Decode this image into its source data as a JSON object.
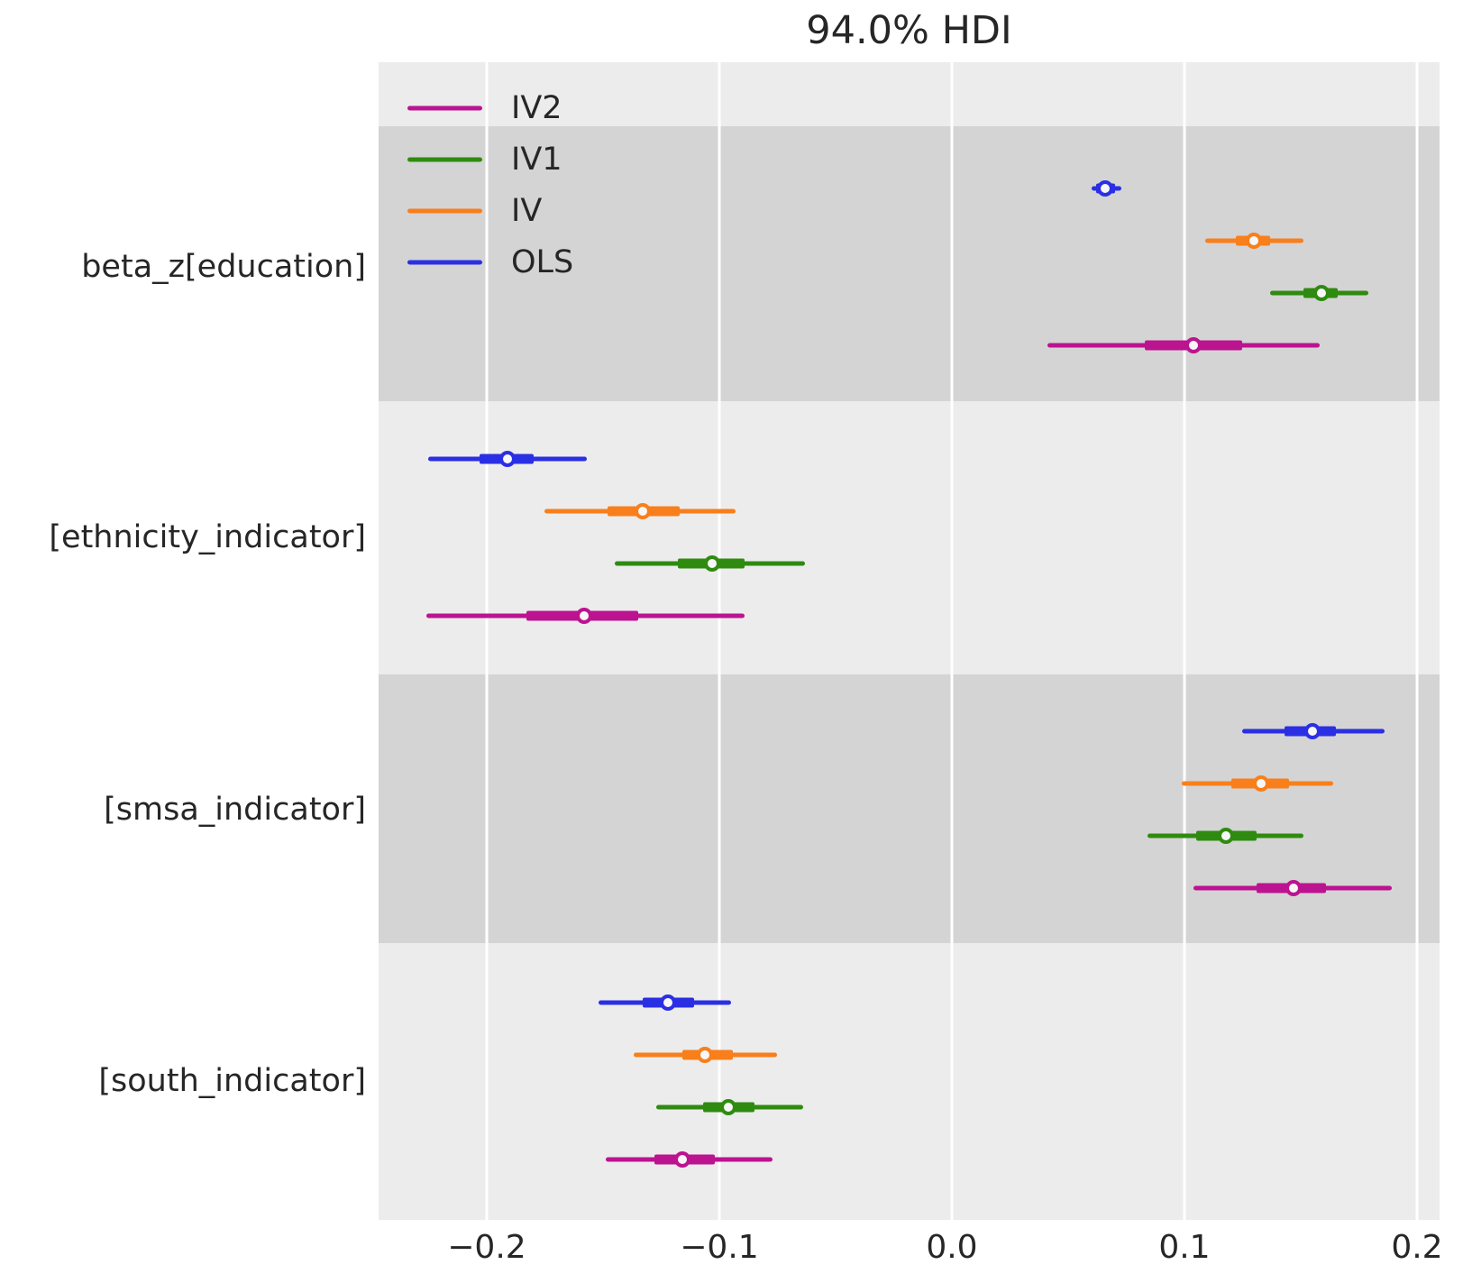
{
  "title": "94.0% HDI",
  "chart_data": {
    "type": "forest",
    "title": "94.0% HDI",
    "hdi_probability": "94.0%",
    "xlabel": "",
    "ylabel": "",
    "xlim": [
      -0.2465,
      0.2097
    ],
    "grid": true,
    "x_ticks": [
      {
        "value": -0.2,
        "label": "−0.2"
      },
      {
        "value": -0.1,
        "label": "−0.1"
      },
      {
        "value": 0.0,
        "label": "0.0"
      },
      {
        "value": 0.1,
        "label": "0.1"
      },
      {
        "value": 0.2,
        "label": "0.2"
      }
    ],
    "models": [
      {
        "name": "OLS",
        "color": "#2b2fe4"
      },
      {
        "name": "IV",
        "color": "#f87f1b"
      },
      {
        "name": "IV1",
        "color": "#2e8b10"
      },
      {
        "name": "IV2",
        "color": "#bc1390"
      }
    ],
    "legend": {
      "position": "upper left",
      "entries": [
        "IV2",
        "IV1",
        "IV",
        "OLS"
      ]
    },
    "parameters": [
      {
        "label": "beta_z[education]",
        "shaded": true,
        "estimates": [
          {
            "model": "OLS",
            "median": 0.066,
            "hdi": [
              0.06,
              0.073
            ],
            "quartiles": [
              0.062,
              0.07
            ]
          },
          {
            "model": "IV",
            "median": 0.13,
            "hdi": [
              0.109,
              0.151
            ],
            "quartiles": [
              0.122,
              0.137
            ]
          },
          {
            "model": "IV1",
            "median": 0.159,
            "hdi": [
              0.137,
              0.179
            ],
            "quartiles": [
              0.151,
              0.166
            ]
          },
          {
            "model": "IV2",
            "median": 0.104,
            "hdi": [
              0.041,
              0.158
            ],
            "quartiles": [
              0.083,
              0.125
            ]
          }
        ]
      },
      {
        "label": "[ethnicity_indicator]",
        "shaded": false,
        "estimates": [
          {
            "model": "OLS",
            "median": -0.191,
            "hdi": [
              -0.225,
              -0.157
            ],
            "quartiles": [
              -0.203,
              -0.18
            ]
          },
          {
            "model": "IV",
            "median": -0.133,
            "hdi": [
              -0.175,
              -0.093
            ],
            "quartiles": [
              -0.148,
              -0.117
            ]
          },
          {
            "model": "IV1",
            "median": -0.103,
            "hdi": [
              -0.145,
              -0.063
            ],
            "quartiles": [
              -0.118,
              -0.089
            ]
          },
          {
            "model": "IV2",
            "median": -0.158,
            "hdi": [
              -0.226,
              -0.089
            ],
            "quartiles": [
              -0.183,
              -0.135
            ]
          }
        ]
      },
      {
        "label": "[smsa_indicator]",
        "shaded": true,
        "estimates": [
          {
            "model": "OLS",
            "median": 0.155,
            "hdi": [
              0.125,
              0.186
            ],
            "quartiles": [
              0.143,
              0.165
            ]
          },
          {
            "model": "IV",
            "median": 0.133,
            "hdi": [
              0.099,
              0.164
            ],
            "quartiles": [
              0.12,
              0.145
            ]
          },
          {
            "model": "IV1",
            "median": 0.118,
            "hdi": [
              0.084,
              0.151
            ],
            "quartiles": [
              0.105,
              0.131
            ]
          },
          {
            "model": "IV2",
            "median": 0.147,
            "hdi": [
              0.104,
              0.189
            ],
            "quartiles": [
              0.131,
              0.161
            ]
          }
        ]
      },
      {
        "label": "[south_indicator]",
        "shaded": false,
        "estimates": [
          {
            "model": "OLS",
            "median": -0.122,
            "hdi": [
              -0.152,
              -0.095
            ],
            "quartiles": [
              -0.133,
              -0.111
            ]
          },
          {
            "model": "IV",
            "median": -0.106,
            "hdi": [
              -0.137,
              -0.075
            ],
            "quartiles": [
              -0.116,
              -0.094
            ]
          },
          {
            "model": "IV1",
            "median": -0.096,
            "hdi": [
              -0.127,
              -0.064
            ],
            "quartiles": [
              -0.107,
              -0.085
            ]
          },
          {
            "model": "IV2",
            "median": -0.116,
            "hdi": [
              -0.149,
              -0.077
            ],
            "quartiles": [
              -0.128,
              -0.102
            ]
          }
        ]
      }
    ],
    "colors": {
      "plot_background": "#ececec",
      "shaded_band": "#d4d4d4",
      "gridline": "#ffffff",
      "text": "#262626",
      "marker_face": "#f7f7f7"
    }
  }
}
